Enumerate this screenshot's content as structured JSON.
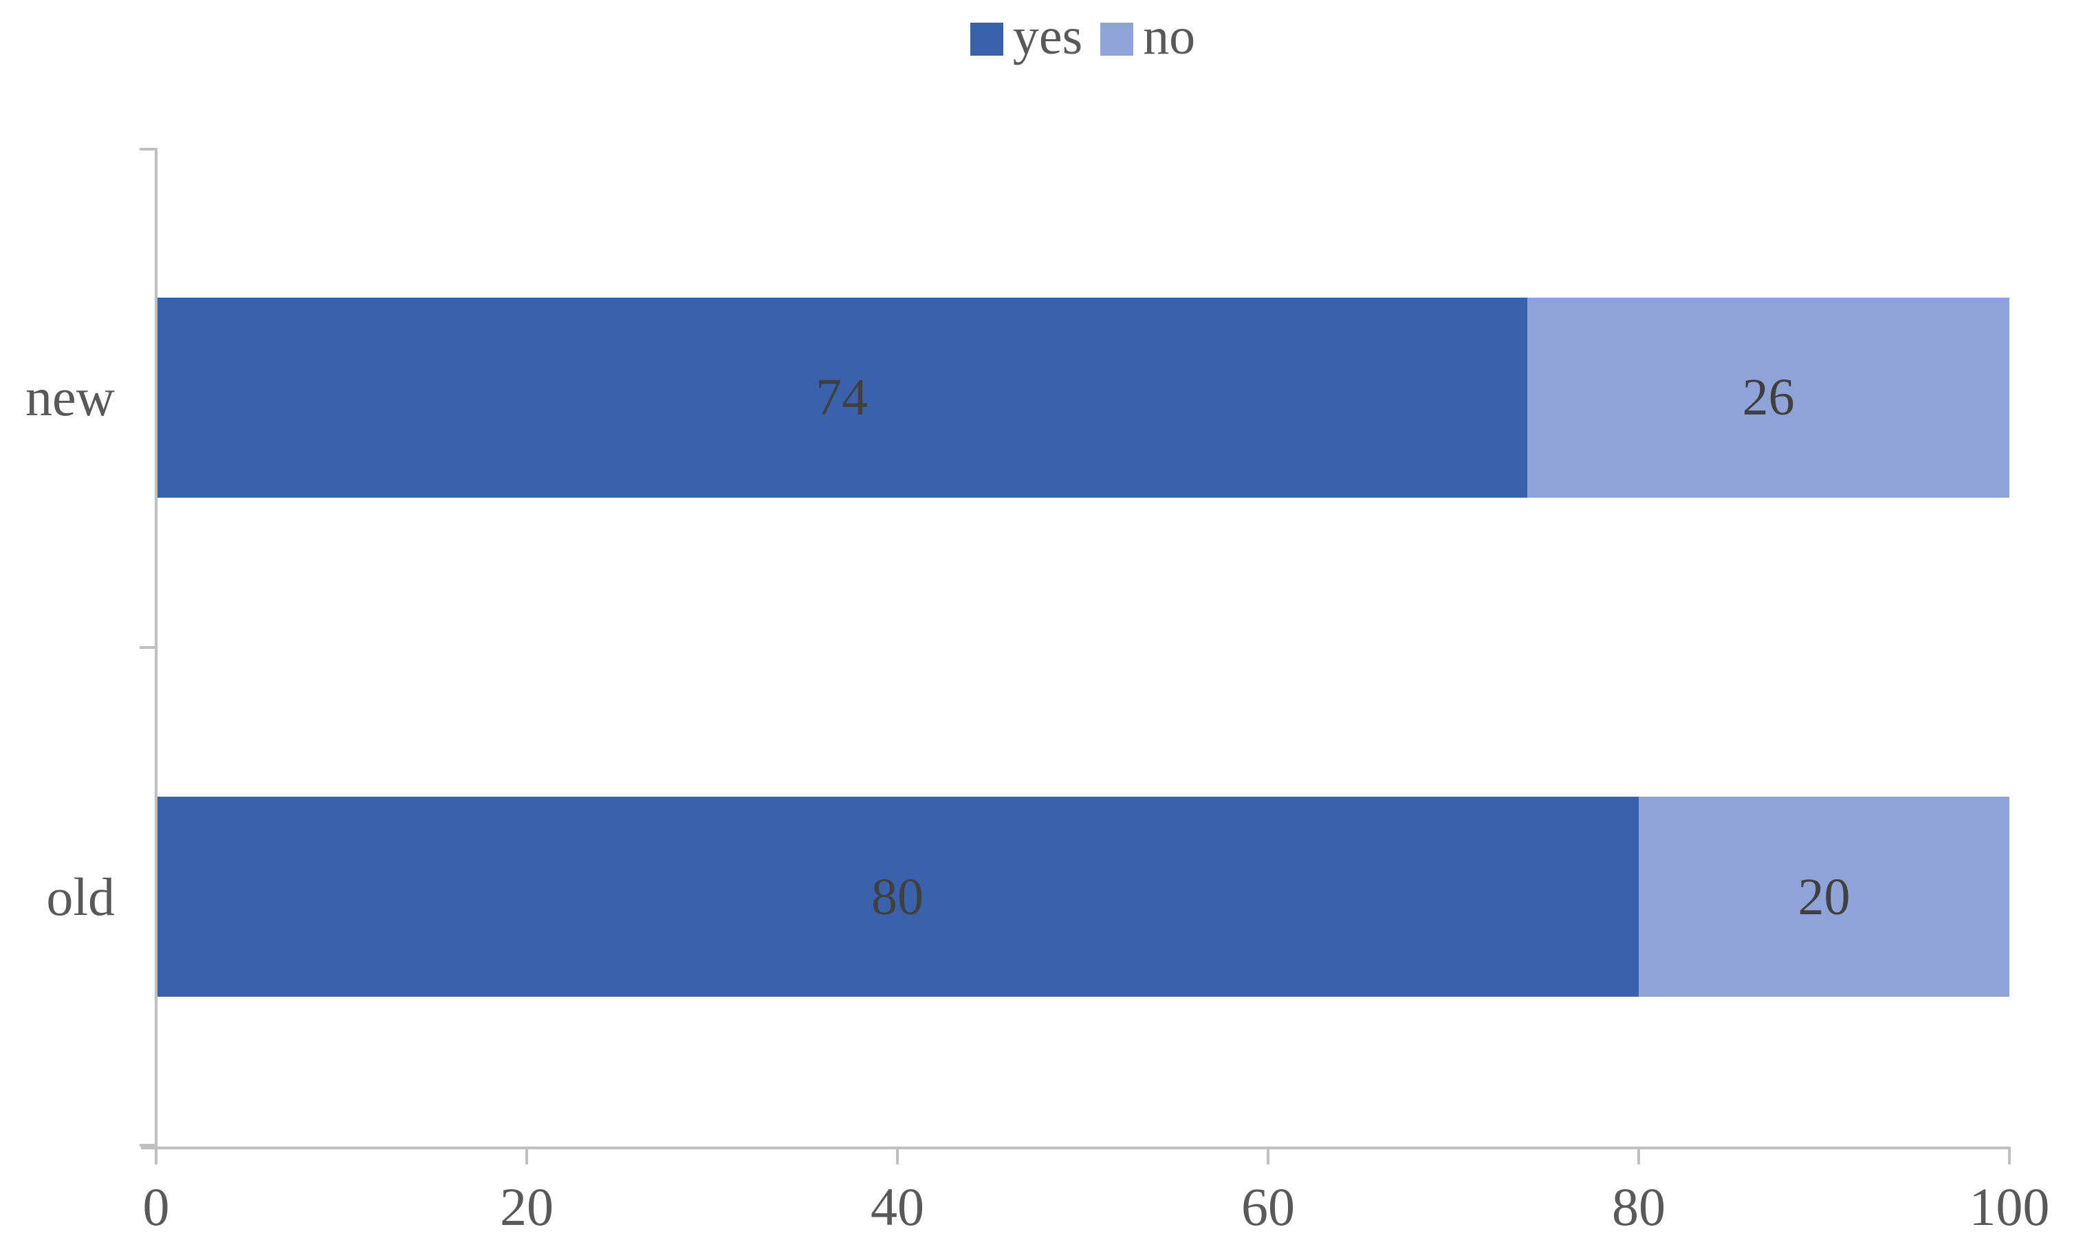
{
  "chart_data": {
    "type": "bar",
    "orientation": "horizontal",
    "stacked": true,
    "title": "",
    "categories": [
      "new",
      "old"
    ],
    "series": [
      {
        "name": "yes",
        "color": "#3A62AC",
        "values": [
          74,
          80
        ]
      },
      {
        "name": "no",
        "color": "#8FA3D6",
        "values": [
          26,
          20
        ]
      }
    ],
    "xlim": [
      0,
      100
    ],
    "x_ticks": [
      0,
      20,
      40,
      60,
      80,
      100
    ],
    "x_tick_labels": [
      "0",
      "20",
      "40",
      "60",
      "80",
      "100"
    ],
    "legend_position": "top-center",
    "data_labels": true,
    "gridlines": false
  },
  "legend": {
    "items": [
      {
        "label": "yes",
        "color": "#3A62AC"
      },
      {
        "label": "no",
        "color": "#8FA3D6"
      }
    ]
  },
  "styles": {
    "axis_color": "#BFBFBF",
    "axis_text_color": "#595959",
    "data_label_color": "#404040",
    "background": "#FFFFFF"
  }
}
